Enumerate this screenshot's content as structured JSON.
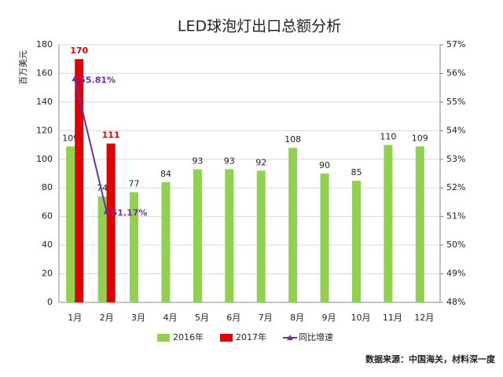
{
  "chart_data": {
    "type": "bar",
    "title": "LED球泡灯出口总额分析",
    "y_label": "百万美元",
    "categories": [
      "1月",
      "2月",
      "3月",
      "4月",
      "5月",
      "6月",
      "7月",
      "8月",
      "9月",
      "10月",
      "11月",
      "12月"
    ],
    "series": [
      {
        "name": "2016年",
        "color": "#92d050",
        "type": "bar",
        "values": [
          109,
          74,
          77,
          84,
          93,
          93,
          92,
          108,
          90,
          85,
          110,
          109
        ]
      },
      {
        "name": "2017年",
        "color": "#e00000",
        "type": "bar",
        "values": [
          170,
          111,
          null,
          null,
          null,
          null,
          null,
          null,
          null,
          null,
          null,
          null
        ]
      },
      {
        "name": "同比增速",
        "color": "#7030a0",
        "type": "line",
        "axis": "y2",
        "values": [
          55.81,
          51.17,
          null,
          null,
          null,
          null,
          null,
          null,
          null,
          null,
          null,
          null
        ],
        "value_labels": [
          "55.81%",
          "51.17%",
          null,
          null,
          null,
          null,
          null,
          null,
          null,
          null,
          null,
          null
        ]
      }
    ],
    "ylim": [
      0,
      180
    ],
    "yticks": [
      0,
      20,
      40,
      60,
      80,
      100,
      120,
      140,
      160,
      180
    ],
    "y2lim": [
      48,
      57
    ],
    "y2ticks": [
      {
        "value": 48,
        "label": "48%"
      },
      {
        "value": 49,
        "label": "49%"
      },
      {
        "value": 50,
        "label": "50%"
      },
      {
        "value": 51,
        "label": "51%"
      },
      {
        "value": 52,
        "label": "52%"
      },
      {
        "value": 53,
        "label": "53%"
      },
      {
        "value": 54,
        "label": "54%"
      },
      {
        "value": 55,
        "label": "55%"
      },
      {
        "value": 56,
        "label": "56%"
      },
      {
        "value": 57,
        "label": "57%"
      }
    ],
    "grid": true,
    "legend": "bottom",
    "source": "数据来源：中国海关，材料深一度"
  }
}
